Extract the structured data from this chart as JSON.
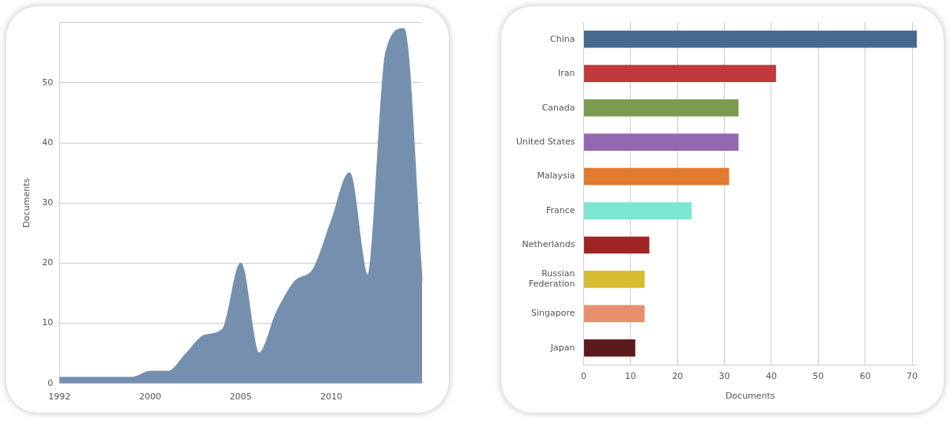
{
  "chart_data": [
    {
      "type": "area",
      "ylabel": "Documents",
      "categories": [
        "1992",
        null,
        null,
        null,
        null,
        "2000",
        null,
        null,
        null,
        null,
        "2005",
        null,
        null,
        null,
        null,
        "2010",
        null,
        null,
        null,
        null,
        null
      ],
      "series": [
        {
          "color": "#7590ae",
          "values": [
            1,
            1,
            1,
            1,
            1,
            2,
            2,
            5,
            8,
            9,
            20,
            5,
            12,
            17,
            19,
            27,
            35,
            18,
            55,
            59,
            17
          ]
        }
      ],
      "ylim": [
        0,
        60
      ],
      "yticks": [
        0,
        10,
        20,
        30,
        40,
        50,
        {
          "value": 60,
          "label": null
        }
      ],
      "grid": "y",
      "legend": false
    },
    {
      "type": "bar",
      "orientation": "horizontal",
      "xlabel": "Documents",
      "categories": [
        "China",
        "Iran",
        "Canada",
        "United States",
        "Malaysia",
        "France",
        "Netherlands",
        "Russian Federation",
        "Singapore",
        "Japan"
      ],
      "values": [
        71,
        41,
        33,
        33,
        31,
        23,
        14,
        13,
        13,
        11
      ],
      "colors": [
        "#46698f",
        "#c0393b",
        "#7b9b50",
        "#9467b5",
        "#e07a2e",
        "#7de6d3",
        "#a02424",
        "#d9bc2f",
        "#e8906e",
        "#5c1a1c"
      ],
      "xlim": [
        0,
        71
      ],
      "xticks": [
        0,
        10,
        20,
        30,
        40,
        50,
        60,
        70
      ],
      "grid": "x",
      "legend": false
    }
  ]
}
